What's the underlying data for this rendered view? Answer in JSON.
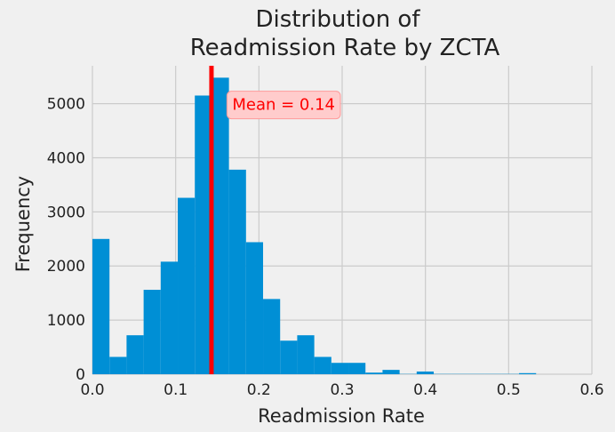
{
  "chart_data": {
    "type": "bar",
    "subtype": "histogram",
    "title_lines": [
      "Distribution of",
      "Readmission Rate by ZCTA"
    ],
    "xlabel": "Readmission Rate",
    "ylabel": "Frequency",
    "xlim": [
      0.0,
      0.6
    ],
    "ylim": [
      0,
      5700
    ],
    "x_ticks": [
      0.0,
      0.1,
      0.2,
      0.3,
      0.4,
      0.5,
      0.6
    ],
    "x_tick_labels": [
      "0.0",
      "0.1",
      "0.2",
      "0.3",
      "0.4",
      "0.5",
      "0.6"
    ],
    "y_ticks": [
      0,
      1000,
      2000,
      3000,
      4000,
      5000
    ],
    "y_tick_labels": [
      "0",
      "1000",
      "2000",
      "3000",
      "4000",
      "5000"
    ],
    "grid": true,
    "bin_width": 0.0205,
    "bins": [
      {
        "start": 0.0,
        "count": 2500
      },
      {
        "start": 0.0205,
        "count": 320
      },
      {
        "start": 0.041,
        "count": 720
      },
      {
        "start": 0.0615,
        "count": 1560
      },
      {
        "start": 0.082,
        "count": 2080
      },
      {
        "start": 0.1025,
        "count": 3260
      },
      {
        "start": 0.123,
        "count": 5150
      },
      {
        "start": 0.1435,
        "count": 5480
      },
      {
        "start": 0.164,
        "count": 3780
      },
      {
        "start": 0.1845,
        "count": 2440
      },
      {
        "start": 0.205,
        "count": 1390
      },
      {
        "start": 0.2255,
        "count": 620
      },
      {
        "start": 0.246,
        "count": 720
      },
      {
        "start": 0.2665,
        "count": 320
      },
      {
        "start": 0.287,
        "count": 210
      },
      {
        "start": 0.3075,
        "count": 210
      },
      {
        "start": 0.328,
        "count": 30
      },
      {
        "start": 0.3485,
        "count": 80
      },
      {
        "start": 0.369,
        "count": 5
      },
      {
        "start": 0.3895,
        "count": 50
      },
      {
        "start": 0.41,
        "count": 5
      },
      {
        "start": 0.4305,
        "count": 5
      },
      {
        "start": 0.451,
        "count": 5
      },
      {
        "start": 0.4715,
        "count": 5
      },
      {
        "start": 0.492,
        "count": 5
      },
      {
        "start": 0.5125,
        "count": 20
      }
    ],
    "mean_line": {
      "x": 0.143,
      "color": "#ff0000"
    },
    "annotation": {
      "text": "Mean = 0.14",
      "x": 0.168,
      "y": 5000
    },
    "bar_color": "#008fd5"
  }
}
